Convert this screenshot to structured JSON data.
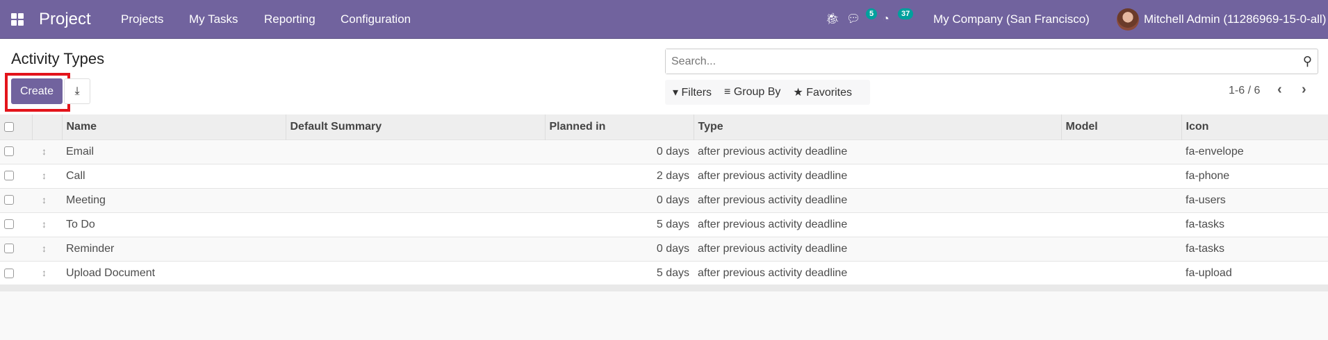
{
  "navbar": {
    "app": "Project",
    "menu": [
      "Projects",
      "My Tasks",
      "Reporting",
      "Configuration"
    ],
    "messages_count": "5",
    "activities_count": "37",
    "company": "My Company (San Francisco)",
    "user": "Mitchell Admin (11286969-15-0-all)",
    "color": "#71639e"
  },
  "page": {
    "title": "Activity Types",
    "create_label": "Create",
    "search_placeholder": "Search...",
    "filters": "Filters",
    "group_by": "Group By",
    "favorites": "Favorites",
    "pager": "1-6 / 6"
  },
  "table": {
    "columns": [
      "Name",
      "Default Summary",
      "Planned in",
      "Type",
      "Model",
      "Icon"
    ],
    "rows": [
      {
        "name": "Email",
        "summary": "",
        "planned": "0 days",
        "type": "after previous activity deadline",
        "model": "",
        "icon": "fa-envelope"
      },
      {
        "name": "Call",
        "summary": "",
        "planned": "2 days",
        "type": "after previous activity deadline",
        "model": "",
        "icon": "fa-phone"
      },
      {
        "name": "Meeting",
        "summary": "",
        "planned": "0 days",
        "type": "after previous activity deadline",
        "model": "",
        "icon": "fa-users"
      },
      {
        "name": "To Do",
        "summary": "",
        "planned": "5 days",
        "type": "after previous activity deadline",
        "model": "",
        "icon": "fa-tasks"
      },
      {
        "name": "Reminder",
        "summary": "",
        "planned": "0 days",
        "type": "after previous activity deadline",
        "model": "",
        "icon": "fa-tasks"
      },
      {
        "name": "Upload Document",
        "summary": "",
        "planned": "5 days",
        "type": "after previous activity deadline",
        "model": "",
        "icon": "fa-upload"
      }
    ]
  }
}
